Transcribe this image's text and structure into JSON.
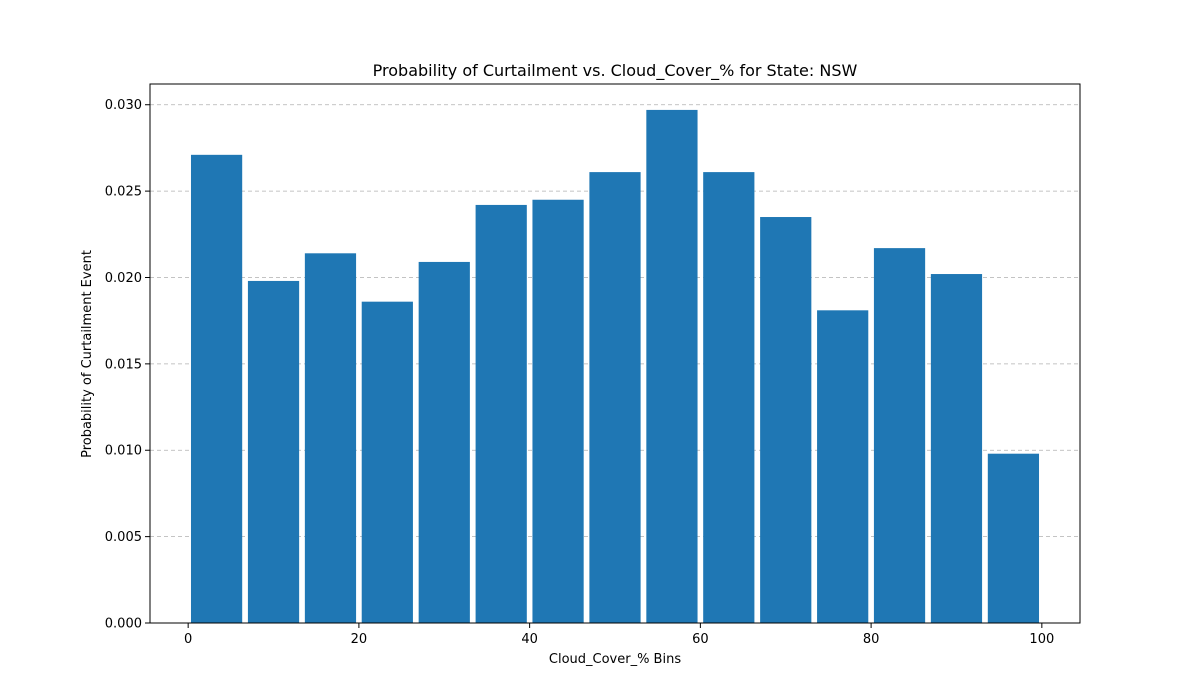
{
  "chart_data": {
    "type": "bar",
    "title": "Probability of Curtailment vs. Cloud_Cover_% for State: NSW",
    "xlabel": "Cloud_Cover_% Bins",
    "ylabel": "Probability of Curtailment Event",
    "xlim": [
      -4.47,
      104.47
    ],
    "ylim": [
      0,
      0.0312
    ],
    "x_ticks": [
      0,
      20,
      40,
      60,
      80,
      100
    ],
    "x_tick_labels": [
      "0",
      "20",
      "40",
      "60",
      "80",
      "100"
    ],
    "y_ticks": [
      0.0,
      0.005,
      0.01,
      0.015,
      0.02,
      0.025,
      0.03
    ],
    "y_tick_labels": [
      "0.000",
      "0.005",
      "0.010",
      "0.015",
      "0.020",
      "0.025",
      "0.030"
    ],
    "grid": "y-dashed",
    "bar_width": 6,
    "bar_color": "#1f77b4",
    "bins": [
      {
        "center": 3.33,
        "value": 0.0271
      },
      {
        "center": 10.0,
        "value": 0.0198
      },
      {
        "center": 16.67,
        "value": 0.0214
      },
      {
        "center": 23.33,
        "value": 0.0186
      },
      {
        "center": 30.0,
        "value": 0.0209
      },
      {
        "center": 36.67,
        "value": 0.0242
      },
      {
        "center": 43.33,
        "value": 0.0245
      },
      {
        "center": 50.0,
        "value": 0.0261
      },
      {
        "center": 56.67,
        "value": 0.0297
      },
      {
        "center": 63.33,
        "value": 0.0261
      },
      {
        "center": 70.0,
        "value": 0.0235
      },
      {
        "center": 76.67,
        "value": 0.0181
      },
      {
        "center": 83.33,
        "value": 0.0217
      },
      {
        "center": 90.0,
        "value": 0.0202
      },
      {
        "center": 96.67,
        "value": 0.0098
      }
    ]
  }
}
